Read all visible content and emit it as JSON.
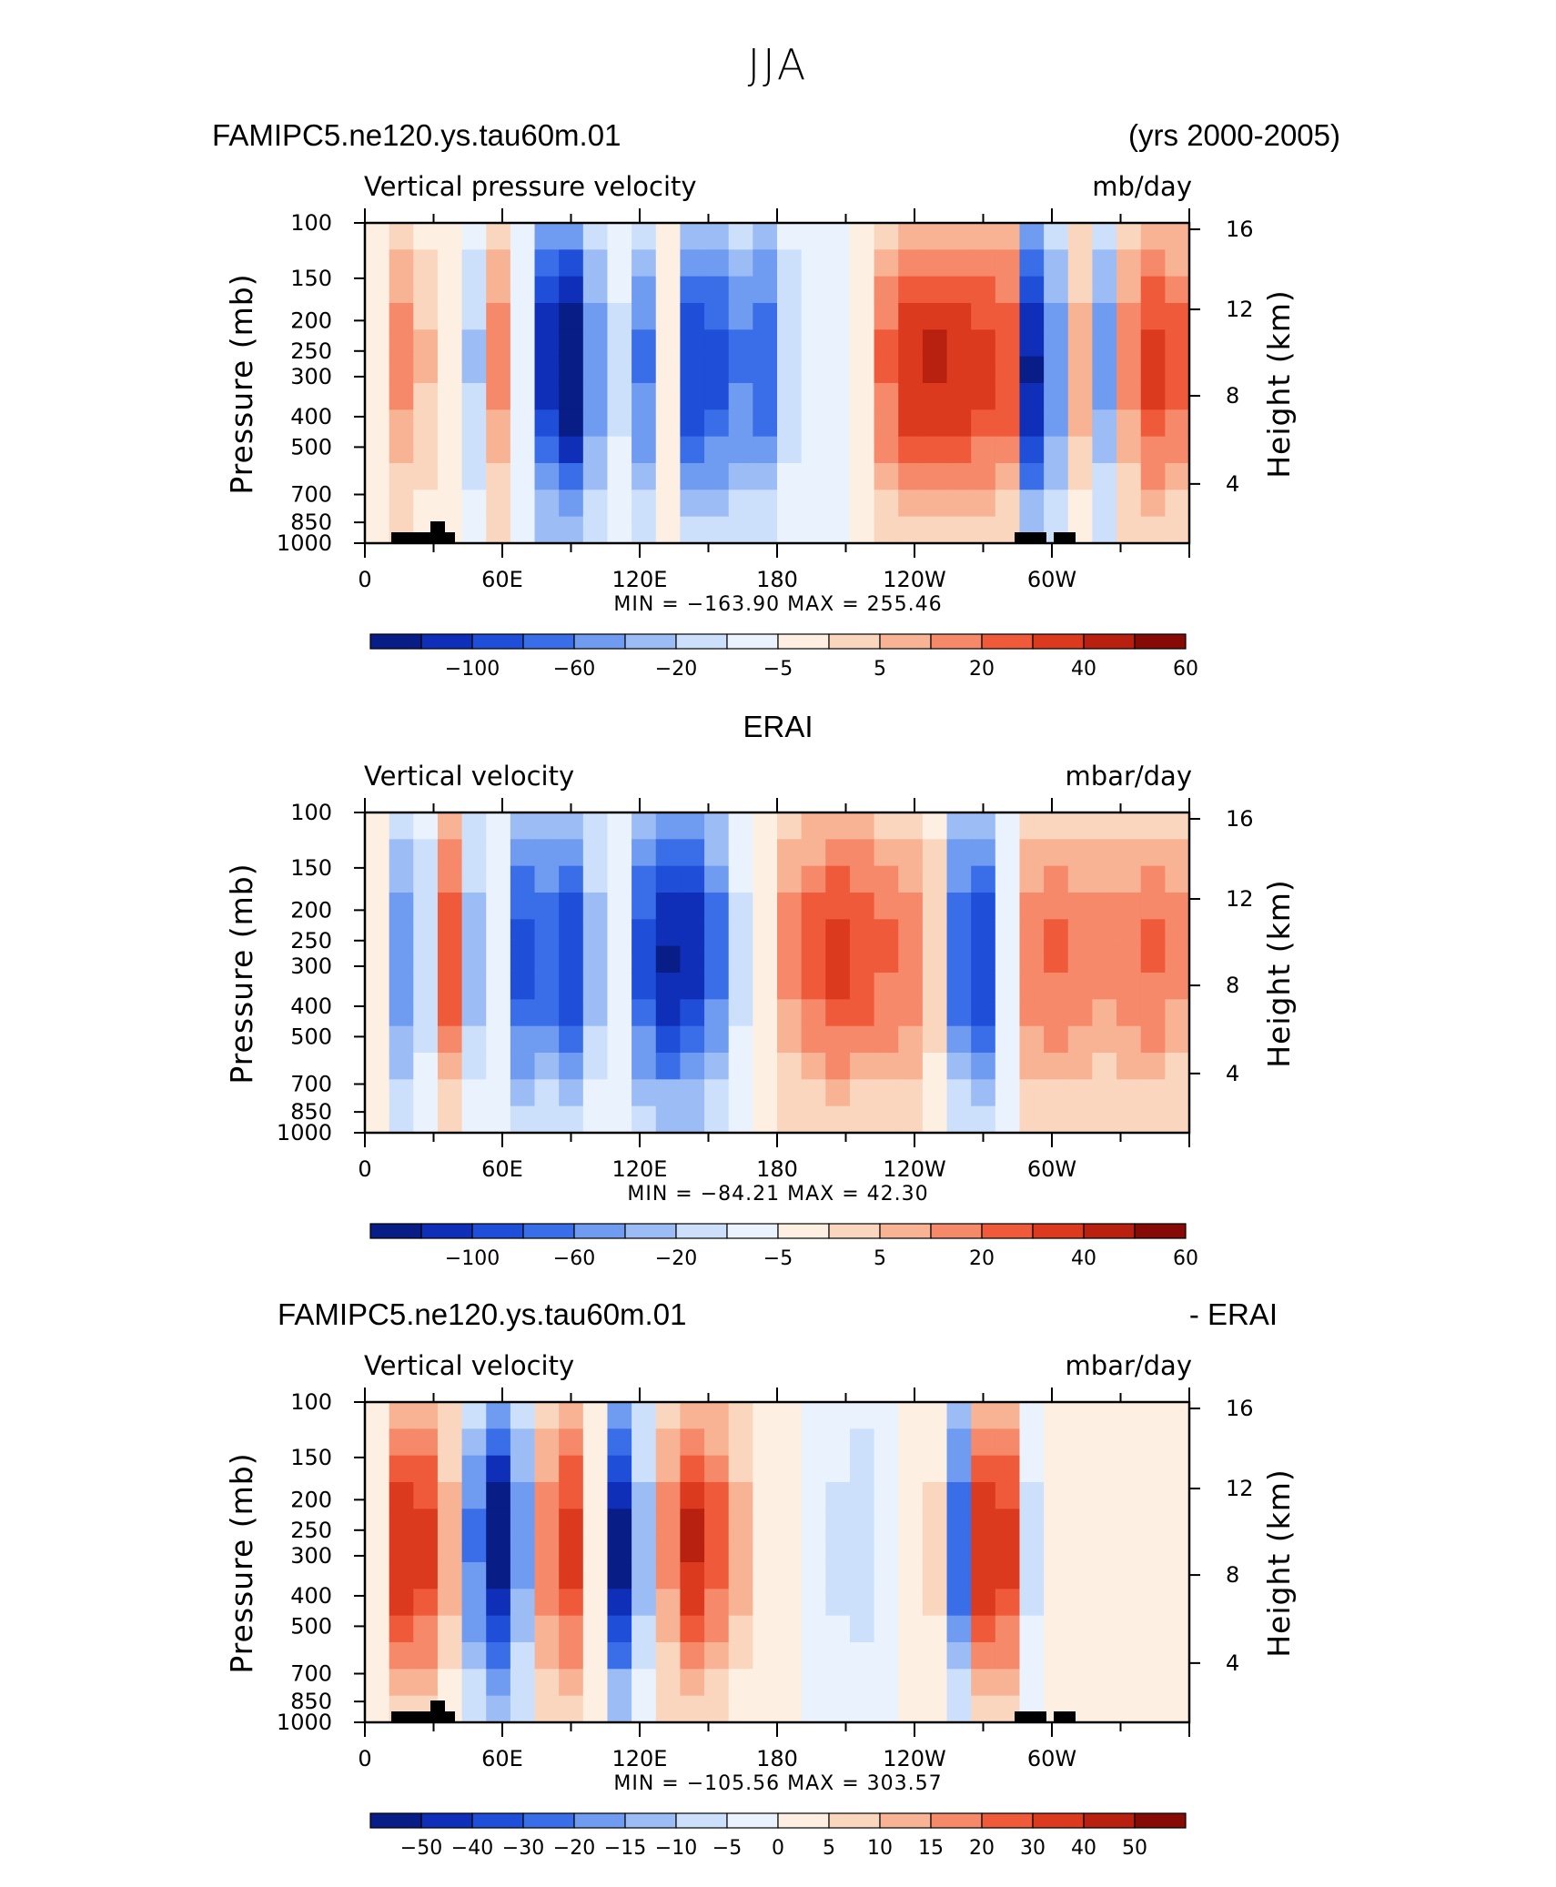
{
  "figure": {
    "title": "JJA",
    "panels": [
      {
        "left_header": "FAMIPC5.ne120.ys.tau60m.01",
        "right_header": "(yrs 2000-2005)",
        "variable": "Vertical pressure velocity",
        "units": "mb/day",
        "stats": "MIN = −163.90   MAX = 255.46",
        "colorbar_labels": [
          "−100",
          "−60",
          "−20",
          "−5",
          "5",
          "20",
          "40",
          "60"
        ],
        "colorbar_colors": [
          "#081d86",
          "#0f2fb8",
          "#1f4fd8",
          "#3a6ee8",
          "#6f9bf0",
          "#9cbcf6",
          "#cde0fb",
          "#eaf3fd",
          "#fdf0e2",
          "#fbd6bf",
          "#f8b394",
          "#f5896a",
          "#ef5a3a",
          "#dc3a1e",
          "#b82010",
          "#860a05"
        ],
        "profile": [
          0,
          0.8,
          0.5,
          0.2,
          -0.5,
          0.8,
          -0.2,
          -1.6,
          -2.0,
          -0.9,
          -0.3,
          -1.0,
          0.1,
          -1.4,
          -1.3,
          -1.0,
          -1.2,
          -0.4,
          -0.2,
          -0.1,
          0.2,
          1.0,
          1.4,
          1.5,
          1.4,
          1.3,
          1.2,
          -1.7,
          -0.9,
          0.6,
          -0.8,
          0.8,
          1.3,
          1.1
        ]
      },
      {
        "left_header": "",
        "center_header": "ERAI",
        "right_header": "",
        "variable": "Vertical velocity",
        "units": "mbar/day",
        "stats": "MIN = −84.21   MAX =   42.30",
        "colorbar_labels": [
          "−100",
          "−60",
          "−20",
          "−5",
          "5",
          "20",
          "40",
          "60"
        ],
        "colorbar_colors": [
          "#081d86",
          "#0f2fb8",
          "#1f4fd8",
          "#3a6ee8",
          "#6f9bf0",
          "#9cbcf6",
          "#cde0fb",
          "#eaf3fd",
          "#fdf0e2",
          "#fbd6bf",
          "#f8b394",
          "#f5896a",
          "#ef5a3a",
          "#dc3a1e",
          "#b82010",
          "#860a05"
        ],
        "profile": [
          0.2,
          -0.9,
          -0.4,
          1.2,
          -0.6,
          -0.2,
          -1.3,
          -1.2,
          -1.4,
          -0.6,
          -0.2,
          -1.3,
          -1.7,
          -1.6,
          -1.1,
          -0.3,
          0.2,
          0.8,
          1.1,
          1.3,
          1.2,
          1.0,
          0.9,
          0.4,
          -1.2,
          -1.4,
          -0.2,
          0.9,
          1.0,
          0.9,
          0.8,
          0.9,
          1.0,
          0.8
        ]
      },
      {
        "left_header": "FAMIPC5.ne120.ys.tau60m.01",
        "right_header": "- ERAI",
        "variable": "Vertical velocity",
        "units": "mbar/day",
        "stats": "MIN = −105.56   MAX = 303.57",
        "colorbar_labels": [
          "−50",
          "−40",
          "−30",
          "−20",
          "−15",
          "−10",
          "−5",
          "0",
          "5",
          "10",
          "15",
          "20",
          "30",
          "40",
          "50"
        ],
        "colorbar_colors": [
          "#081d86",
          "#0f2fb8",
          "#1f4fd8",
          "#3a6ee8",
          "#6f9bf0",
          "#9cbcf6",
          "#cde0fb",
          "#eaf3fd",
          "#fdf0e2",
          "#fbd6bf",
          "#f8b394",
          "#f5896a",
          "#ef5a3a",
          "#dc3a1e",
          "#b82010",
          "#860a05"
        ],
        "profile": [
          0,
          1.4,
          1.3,
          0.6,
          -1.0,
          -1.9,
          -0.8,
          0.9,
          1.3,
          0.2,
          -1.8,
          -0.6,
          0.8,
          1.5,
          1.1,
          0.6,
          0.2,
          0.0,
          -0.2,
          -0.3,
          -0.4,
          -0.2,
          0.1,
          0.3,
          -1.2,
          1.4,
          1.3,
          -0.3,
          0.1,
          0.0,
          0.2,
          0.1,
          0.0,
          0.1
        ]
      }
    ],
    "left_axis": {
      "label": "Pressure (mb)",
      "ticks": [
        "100",
        "150",
        "200",
        "250",
        "300",
        "400",
        "500",
        "700",
        "850",
        "1000"
      ]
    },
    "right_axis": {
      "label": "Height (km)",
      "ticks": [
        "16",
        "12",
        "8",
        "4"
      ]
    },
    "x_axis": {
      "ticks": [
        "0",
        "60E",
        "120E",
        "180",
        "120W",
        "60W"
      ]
    }
  },
  "chart_data": [
    {
      "type": "heatmap",
      "title": "FAMIPC5.ne120.ys.tau60m.01 (yrs 2000-2005) — Vertical pressure velocity",
      "units": "mb/day",
      "xlabel": "Longitude",
      "ylabel": "Pressure (mb)",
      "y2label": "Height (km)",
      "xlim": [
        0,
        360
      ],
      "ylim": [
        1000,
        100
      ],
      "x_ticks": [
        "0",
        "60E",
        "120E",
        "180",
        "120W",
        "60W"
      ],
      "y_ticks": [
        100,
        150,
        200,
        250,
        300,
        400,
        500,
        700,
        850,
        1000
      ],
      "y2_ticks": [
        4,
        8,
        12,
        16
      ],
      "min": -163.9,
      "max": 255.46,
      "contour_levels": [
        -100,
        -80,
        -60,
        -40,
        -20,
        -10,
        -5,
        0,
        5,
        10,
        20,
        30,
        40,
        50,
        60
      ]
    },
    {
      "type": "heatmap",
      "title": "ERAI — Vertical velocity",
      "units": "mbar/day",
      "xlabel": "Longitude",
      "ylabel": "Pressure (mb)",
      "y2label": "Height (km)",
      "xlim": [
        0,
        360
      ],
      "ylim": [
        1000,
        100
      ],
      "x_ticks": [
        "0",
        "60E",
        "120E",
        "180",
        "120W",
        "60W"
      ],
      "y_ticks": [
        100,
        150,
        200,
        250,
        300,
        400,
        500,
        700,
        850,
        1000
      ],
      "y2_ticks": [
        4,
        8,
        12,
        16
      ],
      "min": -84.21,
      "max": 42.3,
      "contour_levels": [
        -100,
        -80,
        -60,
        -40,
        -20,
        -10,
        -5,
        0,
        5,
        10,
        20,
        30,
        40,
        50,
        60
      ]
    },
    {
      "type": "heatmap",
      "title": "FAMIPC5.ne120.ys.tau60m.01 - ERAI — Vertical velocity",
      "units": "mbar/day",
      "xlabel": "Longitude",
      "ylabel": "Pressure (mb)",
      "y2label": "Height (km)",
      "xlim": [
        0,
        360
      ],
      "ylim": [
        1000,
        100
      ],
      "x_ticks": [
        "0",
        "60E",
        "120E",
        "180",
        "120W",
        "60W"
      ],
      "y_ticks": [
        100,
        150,
        200,
        250,
        300,
        400,
        500,
        700,
        850,
        1000
      ],
      "y2_ticks": [
        4,
        8,
        12,
        16
      ],
      "min": -105.56,
      "max": 303.57,
      "contour_levels": [
        -50,
        -40,
        -30,
        -20,
        -15,
        -10,
        -5,
        0,
        5,
        10,
        15,
        20,
        30,
        40,
        50
      ]
    }
  ]
}
